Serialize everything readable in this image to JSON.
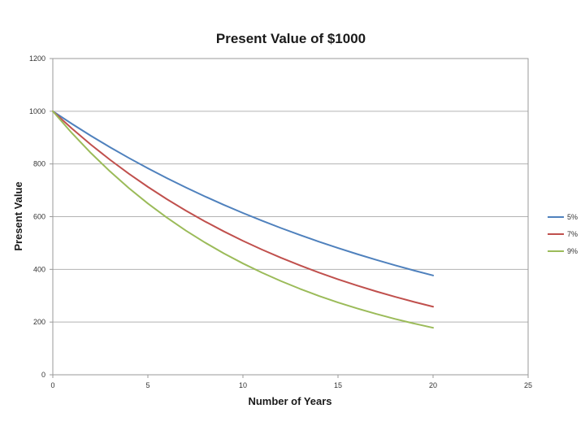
{
  "chart_data": {
    "type": "line",
    "title": "Present Value of $1000",
    "xlabel": "Number of Years",
    "ylabel": "Present Value",
    "xlim": [
      0,
      25
    ],
    "ylim": [
      0,
      1200
    ],
    "xticks": [
      0,
      5,
      10,
      15,
      20,
      25
    ],
    "yticks": [
      0,
      200,
      400,
      600,
      800,
      1000,
      1200
    ],
    "grid": "horizontal",
    "legend_position": "right",
    "x": [
      0,
      1,
      2,
      3,
      4,
      5,
      6,
      7,
      8,
      9,
      10,
      11,
      12,
      13,
      14,
      15,
      16,
      17,
      18,
      19,
      20
    ],
    "series": [
      {
        "name": "5%",
        "color": "#4f81bd",
        "values": [
          1000,
          952.4,
          907.0,
          863.8,
          822.7,
          783.5,
          746.2,
          710.7,
          676.8,
          644.6,
          613.9,
          584.7,
          556.8,
          530.3,
          505.1,
          481.0,
          458.1,
          436.3,
          415.5,
          395.7,
          376.9
        ]
      },
      {
        "name": "7%",
        "color": "#c0504d",
        "values": [
          1000,
          934.6,
          873.4,
          816.3,
          762.9,
          713.0,
          666.3,
          622.7,
          582.0,
          543.9,
          508.3,
          475.1,
          444.0,
          415.0,
          387.8,
          362.4,
          338.7,
          316.6,
          295.9,
          276.5,
          258.4
        ]
      },
      {
        "name": "9%",
        "color": "#9bbb59",
        "values": [
          1000,
          917.4,
          841.7,
          772.2,
          708.4,
          649.9,
          596.3,
          547.0,
          501.9,
          460.4,
          422.4,
          387.5,
          355.5,
          326.2,
          299.2,
          274.5,
          251.9,
          231.1,
          212.0,
          194.5,
          178.4
        ]
      }
    ]
  }
}
